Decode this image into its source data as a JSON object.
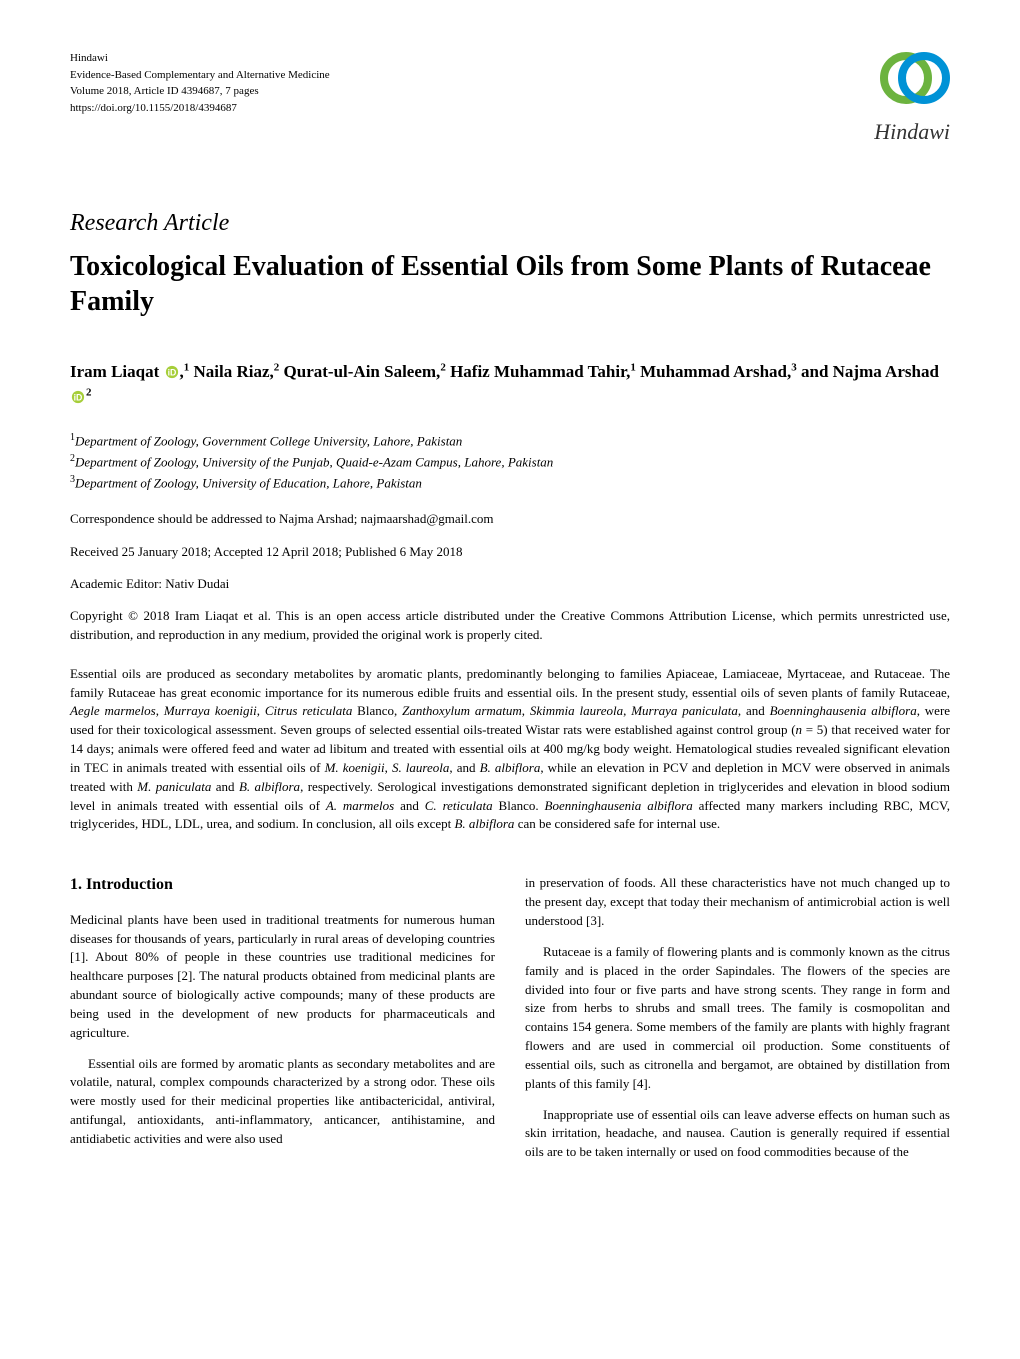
{
  "journal": {
    "publisher": "Hindawi",
    "name": "Evidence-Based Complementary and Alternative Medicine",
    "volume_line": "Volume 2018, Article ID 4394687, 7 pages",
    "doi": "https://doi.org/10.1155/2018/4394687",
    "logo_text": "Hindawi",
    "logo_colors": {
      "blue": "#0092d6",
      "green": "#6cb33f"
    }
  },
  "article_type": "Research Article",
  "title": "Toxicological Evaluation of Essential Oils from Some Plants of Rutaceae Family",
  "authors_html": "Iram Liaqat <svg class='orcid' viewBox='0 0 16 16'><circle cx='8' cy='8' r='7' fill='#a6ce39'/><text x='8' y='12' text-anchor='middle' font-size='10' fill='#fff' font-family='Arial' font-weight='bold'>iD</text></svg>,<sup>1</sup> Naila Riaz,<sup>2</sup> Qurat-ul-Ain Saleem,<sup>2</sup> Hafiz Muhammad Tahir,<sup>1</sup> Muhammad Arshad,<sup>3</sup> and Najma Arshad <svg class='orcid' viewBox='0 0 16 16'><circle cx='8' cy='8' r='7' fill='#a6ce39'/><text x='8' y='12' text-anchor='middle' font-size='10' fill='#fff' font-family='Arial' font-weight='bold'>iD</text></svg><sup>2</sup>",
  "affiliations_html": "<sup>1</sup>Department of Zoology, Government College University, Lahore, Pakistan<br><sup>2</sup>Department of Zoology, University of the Punjab, Quaid-e-Azam Campus, Lahore, Pakistan<br><sup>3</sup>Department of Zoology, University of Education, Lahore, Pakistan",
  "correspondence": "Correspondence should be addressed to Najma Arshad; najmaarshad@gmail.com",
  "dates": "Received 25 January 2018; Accepted 12 April 2018; Published 6 May 2018",
  "editor": "Academic Editor: Nativ Dudai",
  "copyright": "Copyright © 2018 Iram Liaqat et al. This is an open access article distributed under the Creative Commons Attribution License, which permits unrestricted use, distribution, and reproduction in any medium, provided the original work is properly cited.",
  "abstract_html": "Essential oils are produced as secondary metabolites by aromatic plants, predominantly belonging to families Apiaceae, Lamiaceae, Myrtaceae, and Rutaceae. The family Rutaceae has great economic importance for its numerous edible fruits and essential oils. In the present study, essential oils of seven plants of family Rutaceae, <em>Aegle marmelos</em>, <em>Murraya koenigii</em>, <em>Citrus reticulata</em> Blanco, <em>Zanthoxylum armatum</em>, <em>Skimmia laureola</em>, <em>Murraya paniculata</em>, and <em>Boenninghausenia albiflora</em>, were used for their toxicological assessment. Seven groups of selected essential oils-treated Wistar rats were established against control group (<em>n</em> = 5) that received water for 14 days; animals were offered feed and water ad libitum and treated with essential oils at 400 mg/kg body weight. Hematological studies revealed significant elevation in TEC in animals treated with essential oils of <em>M. koenigii</em>, <em>S. laureola</em>, and <em>B. albiflora</em>, while an elevation in PCV and depletion in MCV were observed in animals treated with <em>M. paniculata</em> and <em>B. albiflora</em>, respectively. Serological investigations demonstrated significant depletion in triglycerides and elevation in blood sodium level in animals treated with essential oils of <em>A. marmelos</em> and <em>C. reticulata</em> Blanco. <em>Boenninghausenia albiflora</em> affected many markers including RBC, MCV, triglycerides, HDL, LDL, urea, and sodium. In conclusion, all oils except <em>B. albiflora</em> can be considered safe for internal use.",
  "section_heading": "1. Introduction",
  "col_left": [
    "Medicinal plants have been used in traditional treatments for numerous human diseases for thousands of years, particularly in rural areas of developing countries [1]. About 80% of people in these countries use traditional medicines for healthcare purposes [2]. The natural products obtained from medicinal plants are abundant source of biologically active compounds; many of these products are being used in the development of new products for pharmaceuticals and agriculture.",
    "Essential oils are formed by aromatic plants as secondary metabolites and are volatile, natural, complex compounds characterized by a strong odor. These oils were mostly used for their medicinal properties like antibactericidal, antiviral, antifungal, antioxidants, anti-inflammatory, anticancer, antihistamine, and antidiabetic activities and were also used"
  ],
  "col_right": [
    "in preservation of foods. All these characteristics have not much changed up to the present day, except that today their mechanism of antimicrobial action is well understood [3].",
    "Rutaceae is a family of flowering plants and is commonly known as the citrus family and is placed in the order Sapindales. The flowers of the species are divided into four or five parts and have strong scents. They range in form and size from herbs to shrubs and small trees. The family is cosmopolitan and contains 154 genera. Some members of the family are plants with highly fragrant flowers and are used in commercial oil production. Some constituents of essential oils, such as citronella and bergamot, are obtained by distillation from plants of this family [4].",
    "Inappropriate use of essential oils can leave adverse effects on human such as skin irritation, headache, and nausea. Caution is generally required if essential oils are to be taken internally or used on food commodities because of the"
  ],
  "style": {
    "page_bg": "#ffffff",
    "text_color": "#000000",
    "body_font_pt": 10,
    "title_font_pt": 21,
    "article_type_font_pt": 18,
    "authors_font_pt": 13,
    "heading_font_pt": 12
  }
}
